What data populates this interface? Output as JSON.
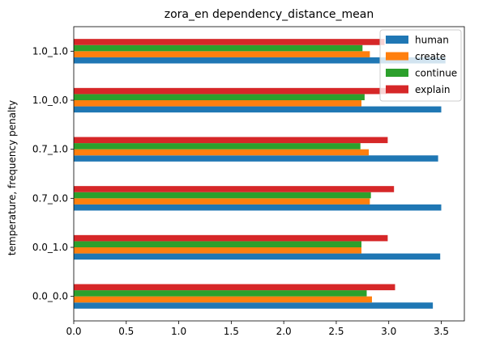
{
  "chart_data": {
    "type": "bar",
    "orientation": "horizontal",
    "title": "zora_en dependency_distance_mean",
    "xlabel": "",
    "ylabel": "temperature, frequency penalty",
    "categories": [
      "0.0_0.0",
      "0.0_1.0",
      "0.7_0.0",
      "0.7_1.0",
      "1.0_0.0",
      "1.0_1.0"
    ],
    "xlim": [
      0,
      3.72
    ],
    "xticks": [
      0.0,
      0.5,
      1.0,
      1.5,
      2.0,
      2.5,
      3.0,
      3.5
    ],
    "xtick_labels": [
      "0.0",
      "0.5",
      "1.0",
      "1.5",
      "2.0",
      "2.5",
      "3.0",
      "3.5"
    ],
    "legend_position": "top-right",
    "grid": false,
    "series": [
      {
        "name": "human",
        "color": "#1f77b4",
        "values": [
          3.42,
          3.49,
          3.5,
          3.47,
          3.5,
          3.54
        ]
      },
      {
        "name": "create",
        "color": "#ff7f0e",
        "values": [
          2.84,
          2.74,
          2.82,
          2.81,
          2.74,
          2.82
        ]
      },
      {
        "name": "continue",
        "color": "#2ca02c",
        "values": [
          2.79,
          2.74,
          2.83,
          2.73,
          2.77,
          2.75
        ]
      },
      {
        "name": "explain",
        "color": "#d62728",
        "values": [
          3.06,
          2.99,
          3.05,
          2.99,
          2.98,
          2.96
        ]
      }
    ]
  }
}
